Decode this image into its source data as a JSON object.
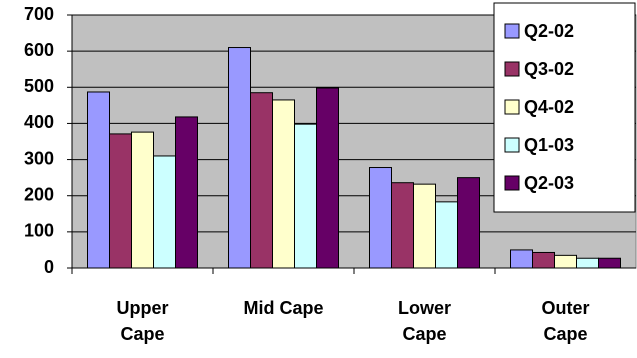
{
  "chart_data": {
    "type": "bar",
    "categories": [
      "Upper Cape",
      "Mid Cape",
      "Lower Cape",
      "Outer Cape"
    ],
    "series": [
      {
        "name": "Q2-02",
        "color": "#9999ff",
        "values": [
          487,
          610,
          278,
          50
        ]
      },
      {
        "name": "Q3-02",
        "color": "#993366",
        "values": [
          371,
          485,
          236,
          43
        ]
      },
      {
        "name": "Q4-02",
        "color": "#ffffcc",
        "values": [
          376,
          465,
          232,
          35
        ]
      },
      {
        "name": "Q1-03",
        "color": "#ccffff",
        "values": [
          310,
          398,
          183,
          27
        ]
      },
      {
        "name": "Q2-03",
        "color": "#660066",
        "values": [
          418,
          498,
          250,
          27
        ]
      }
    ],
    "ylim": [
      0,
      700
    ],
    "yticks": [
      0,
      100,
      200,
      300,
      400,
      500,
      600,
      700
    ],
    "grid": true,
    "legend": "top-right",
    "background": "#c0c0c0"
  }
}
